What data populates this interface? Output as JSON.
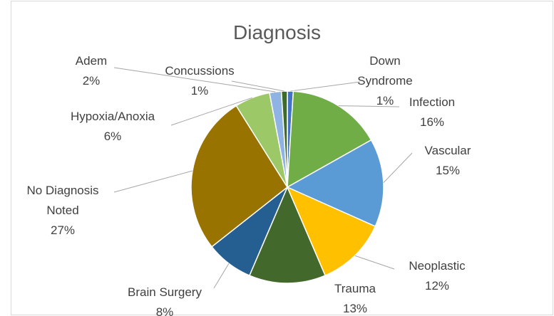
{
  "chart_data": {
    "type": "pie",
    "title": "Diagnosis",
    "categories": [
      "Down Syndrome",
      "Infection",
      "Vascular",
      "Neoplastic",
      "Trauma",
      "Brain Surgery",
      "No Diagnosis Noted",
      "Hypoxia/Anoxia",
      "Adem",
      "Concussions"
    ],
    "values": [
      1,
      16,
      15,
      12,
      13,
      8,
      27,
      6,
      2,
      1
    ],
    "value_labels": [
      "1%",
      "16%",
      "15%",
      "12%",
      "13%",
      "8%",
      "27%",
      "6%",
      "2%",
      "1%"
    ],
    "colors": [
      "#4472c4",
      "#70ad47",
      "#5b9bd5",
      "#ffc000",
      "#43682b",
      "#255e91",
      "#997300",
      "#9dc868",
      "#8fb4e3",
      "#3f6b2a"
    ]
  }
}
